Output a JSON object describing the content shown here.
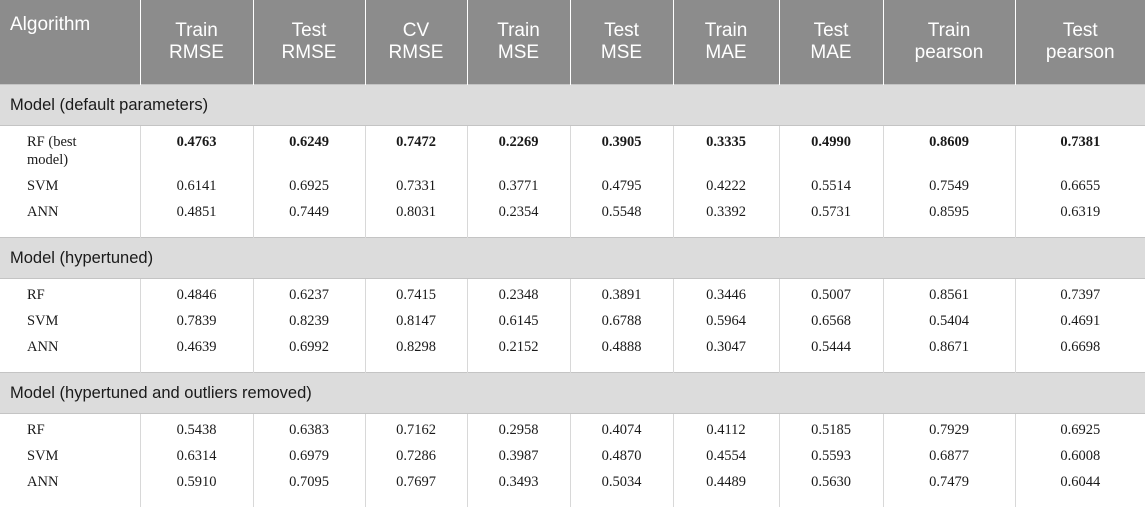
{
  "table": {
    "headers": [
      [
        "Algorithm"
      ],
      [
        "Train",
        "RMSE"
      ],
      [
        "Test",
        "RMSE"
      ],
      [
        "CV",
        "RMSE"
      ],
      [
        "Train",
        "MSE"
      ],
      [
        "Test",
        "MSE"
      ],
      [
        "Train",
        "MAE"
      ],
      [
        "Test",
        "MAE"
      ],
      [
        "Train",
        "pearson"
      ],
      [
        "Test",
        "pearson"
      ]
    ],
    "sections": [
      {
        "title": "Model (default parameters)",
        "rows": [
          {
            "name": "RF (best model)",
            "values": [
              "0.4763",
              "0.6249",
              "0.7472",
              "0.2269",
              "0.3905",
              "0.3335",
              "0.4990",
              "0.8609",
              "0.7381"
            ]
          },
          {
            "name": "SVM",
            "values": [
              "0.6141",
              "0.6925",
              "0.7331",
              "0.3771",
              "0.4795",
              "0.4222",
              "0.5514",
              "0.7549",
              "0.6655"
            ]
          },
          {
            "name": "ANN",
            "values": [
              "0.4851",
              "0.7449",
              "0.8031",
              "0.2354",
              "0.5548",
              "0.3392",
              "0.5731",
              "0.8595",
              "0.6319"
            ]
          }
        ]
      },
      {
        "title": "Model (hypertuned)",
        "rows": [
          {
            "name": "RF",
            "values": [
              "0.4846",
              "0.6237",
              "0.7415",
              "0.2348",
              "0.3891",
              "0.3446",
              "0.5007",
              "0.8561",
              "0.7397"
            ]
          },
          {
            "name": "SVM",
            "values": [
              "0.7839",
              "0.8239",
              "0.8147",
              "0.6145",
              "0.6788",
              "0.5964",
              "0.6568",
              "0.5404",
              "0.4691"
            ]
          },
          {
            "name": "ANN",
            "values": [
              "0.4639",
              "0.6992",
              "0.8298",
              "0.2152",
              "0.4888",
              "0.3047",
              "0.5444",
              "0.8671",
              "0.6698"
            ]
          }
        ]
      },
      {
        "title": "Model (hypertuned and outliers removed)",
        "rows": [
          {
            "name": "RF",
            "values": [
              "0.5438",
              "0.6383",
              "0.7162",
              "0.2958",
              "0.4074",
              "0.4112",
              "0.5185",
              "0.7929",
              "0.6925"
            ]
          },
          {
            "name": "SVM",
            "values": [
              "0.6314",
              "0.6979",
              "0.7286",
              "0.3987",
              "0.4870",
              "0.4554",
              "0.5593",
              "0.6877",
              "0.6008"
            ]
          },
          {
            "name": "ANN",
            "values": [
              "0.5910",
              "0.7095",
              "0.7697",
              "0.3493",
              "0.5034",
              "0.4489",
              "0.5630",
              "0.7479",
              "0.6044"
            ]
          }
        ]
      }
    ]
  }
}
